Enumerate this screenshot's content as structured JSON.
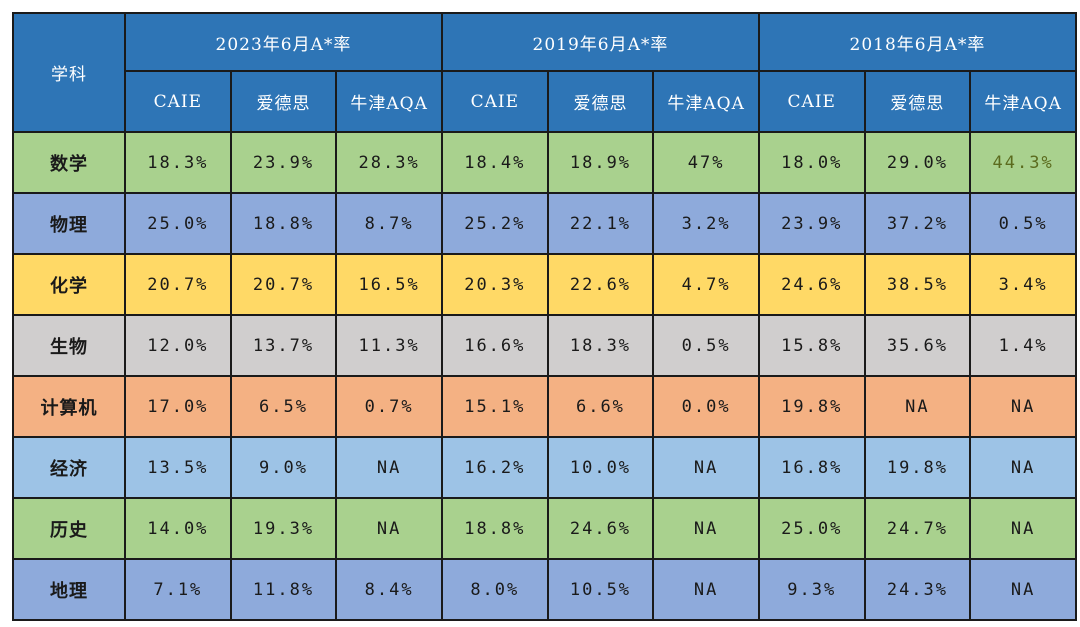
{
  "header": {
    "subject_label": "学科",
    "groups": [
      "2023年6月A*率",
      "2019年6月A*率",
      "2018年6月A*率"
    ],
    "boards": [
      "CAIE",
      "爱德思",
      "牛津AQA"
    ]
  },
  "colors": {
    "header_bg": "#2e75b6",
    "highlight_text": "#5b6b1e"
  },
  "rows": [
    {
      "subject": "数学",
      "color": "#a9d18e",
      "values": [
        "18.3%",
        "23.9%",
        "28.3%",
        "18.4%",
        "18.9%",
        "47%",
        "18.0%",
        "29.0%",
        "44.3%"
      ],
      "highlight_index": 8
    },
    {
      "subject": "物理",
      "color": "#8eaadb",
      "values": [
        "25.0%",
        "18.8%",
        "8.7%",
        "25.2%",
        "22.1%",
        "3.2%",
        "23.9%",
        "37.2%",
        "0.5%"
      ]
    },
    {
      "subject": "化学",
      "color": "#ffd966",
      "values": [
        "20.7%",
        "20.7%",
        "16.5%",
        "20.3%",
        "22.6%",
        "4.7%",
        "24.6%",
        "38.5%",
        "3.4%"
      ]
    },
    {
      "subject": "生物",
      "color": "#d0cece",
      "values": [
        "12.0%",
        "13.7%",
        "11.3%",
        "16.6%",
        "18.3%",
        "0.5%",
        "15.8%",
        "35.6%",
        "1.4%"
      ]
    },
    {
      "subject": "计算机",
      "color": "#f4b183",
      "values": [
        "17.0%",
        "6.5%",
        "0.7%",
        "15.1%",
        "6.6%",
        "0.0%",
        "19.8%",
        "NA",
        "NA"
      ]
    },
    {
      "subject": "经济",
      "color": "#9dc3e6",
      "values": [
        "13.5%",
        "9.0%",
        "NA",
        "16.2%",
        "10.0%",
        "NA",
        "16.8%",
        "19.8%",
        "NA"
      ]
    },
    {
      "subject": "历史",
      "color": "#a9d18e",
      "values": [
        "14.0%",
        "19.3%",
        "NA",
        "18.8%",
        "24.6%",
        "NA",
        "25.0%",
        "24.7%",
        "NA"
      ]
    },
    {
      "subject": "地理",
      "color": "#8eaadb",
      "values": [
        "7.1%",
        "11.8%",
        "8.4%",
        "8.0%",
        "10.5%",
        "NA",
        "9.3%",
        "24.3%",
        "NA"
      ]
    }
  ]
}
